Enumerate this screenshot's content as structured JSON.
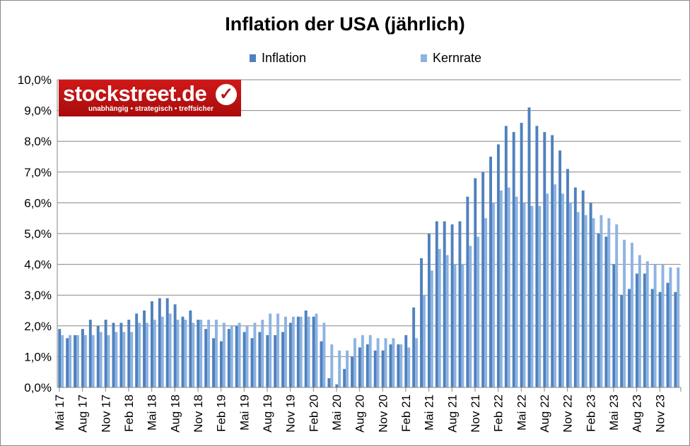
{
  "chart_data": {
    "type": "bar",
    "title": "Inflation der USA (jährlich)",
    "xlabel": "",
    "ylabel": "",
    "ylim": [
      0,
      10
    ],
    "yticks": [
      "0,0%",
      "1,0%",
      "2,0%",
      "3,0%",
      "4,0%",
      "5,0%",
      "6,0%",
      "7,0%",
      "8,0%",
      "9,0%",
      "10,0%"
    ],
    "grid": true,
    "legend_position": "top",
    "x_tick_labels": [
      "Mai 17",
      "Aug 17",
      "Nov 17",
      "Feb 18",
      "Mai 18",
      "Aug 18",
      "Nov 18",
      "Feb 19",
      "Mai 19",
      "Aug 19",
      "Nov 19",
      "Feb 20",
      "Mai 20",
      "Aug 20",
      "Nov 20",
      "Feb 21",
      "Mai 21",
      "Aug 21",
      "Nov 21",
      "Feb 22",
      "Mai 22",
      "Aug 22",
      "Nov 22",
      "Feb 23",
      "Mai 23",
      "Aug 23",
      "Nov 23"
    ],
    "series": [
      {
        "name": "Inflation",
        "color": "#4f81bd",
        "values": [
          1.9,
          1.6,
          1.7,
          1.9,
          2.2,
          2.0,
          2.2,
          2.1,
          2.1,
          2.2,
          2.4,
          2.5,
          2.8,
          2.9,
          2.9,
          2.7,
          2.3,
          2.5,
          2.2,
          1.9,
          1.6,
          1.5,
          1.9,
          2.0,
          1.8,
          1.6,
          1.8,
          1.7,
          1.7,
          1.8,
          2.1,
          2.3,
          2.5,
          2.3,
          1.5,
          0.3,
          0.1,
          0.6,
          1.0,
          1.3,
          1.4,
          1.2,
          1.2,
          1.4,
          1.4,
          1.7,
          2.6,
          4.2,
          5.0,
          5.4,
          5.4,
          5.3,
          5.4,
          6.2,
          6.8,
          7.0,
          7.5,
          7.9,
          8.5,
          8.3,
          8.6,
          9.1,
          8.5,
          8.3,
          8.2,
          7.7,
          7.1,
          6.5,
          6.4,
          6.0,
          5.0,
          4.9,
          4.0,
          3.0,
          3.2,
          3.7,
          3.7,
          3.2,
          3.1,
          3.4,
          3.1
        ]
      },
      {
        "name": "Kernrate",
        "color": "#8db3e2",
        "values": [
          1.7,
          1.7,
          1.7,
          1.7,
          1.7,
          1.8,
          1.7,
          1.8,
          1.8,
          1.8,
          2.1,
          2.1,
          2.2,
          2.3,
          2.4,
          2.2,
          2.2,
          2.1,
          2.2,
          2.2,
          2.2,
          2.1,
          2.0,
          2.1,
          2.0,
          2.1,
          2.2,
          2.4,
          2.4,
          2.3,
          2.3,
          2.3,
          2.3,
          2.4,
          2.1,
          1.4,
          1.2,
          1.2,
          1.6,
          1.7,
          1.7,
          1.6,
          1.6,
          1.6,
          1.4,
          1.3,
          1.6,
          3.0,
          3.8,
          4.5,
          4.3,
          4.0,
          4.0,
          4.6,
          4.9,
          5.5,
          6.0,
          6.4,
          6.5,
          6.2,
          6.0,
          5.9,
          5.9,
          6.3,
          6.6,
          6.3,
          6.0,
          5.7,
          5.6,
          5.5,
          5.6,
          5.5,
          5.3,
          4.8,
          4.7,
          4.3,
          4.1,
          4.0,
          4.0,
          3.9,
          3.9
        ]
      }
    ]
  },
  "logo": {
    "text": "stockstreet.de",
    "slogan": "unabhängig • strategisch • treffsicher"
  }
}
